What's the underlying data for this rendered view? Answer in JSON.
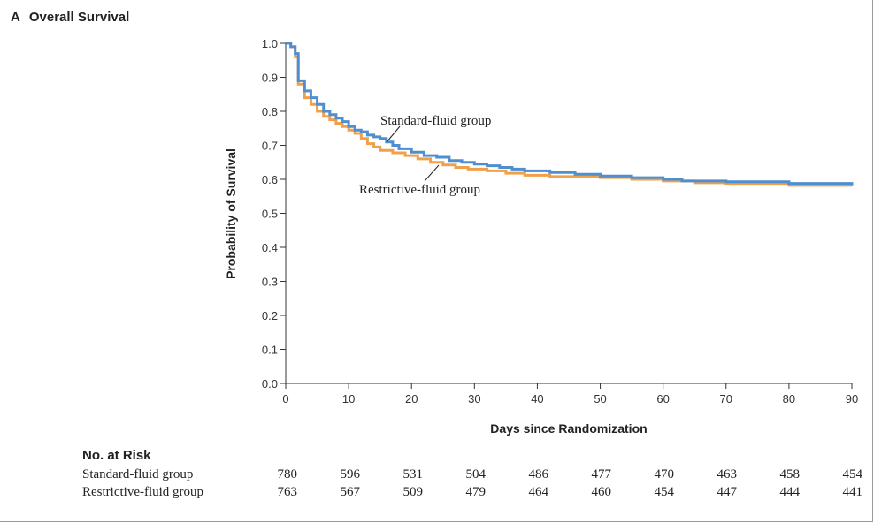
{
  "panel": {
    "letter": "A",
    "title": "Overall Survival"
  },
  "chart_data": {
    "type": "line",
    "step": true,
    "xlabel": "Days since Randomization",
    "ylabel": "Probability of Survival",
    "xlim": [
      0,
      90
    ],
    "ylim": [
      0,
      1.0
    ],
    "xticks": [
      "0",
      "10",
      "20",
      "30",
      "40",
      "50",
      "60",
      "70",
      "80",
      "90"
    ],
    "yticks": [
      "0.0",
      "0.1",
      "0.2",
      "0.3",
      "0.4",
      "0.5",
      "0.6",
      "0.7",
      "0.8",
      "0.9",
      "1.0"
    ],
    "grid": false,
    "series": [
      {
        "name": "Standard-fluid group",
        "color": "#4f8fcf",
        "points": [
          [
            0,
            1.0
          ],
          [
            0.8,
            0.99
          ],
          [
            1.5,
            0.97
          ],
          [
            2,
            0.89
          ],
          [
            3,
            0.86
          ],
          [
            4,
            0.84
          ],
          [
            5,
            0.82
          ],
          [
            6,
            0.8
          ],
          [
            7,
            0.79
          ],
          [
            8,
            0.78
          ],
          [
            9,
            0.77
          ],
          [
            10,
            0.755
          ],
          [
            11,
            0.745
          ],
          [
            12,
            0.74
          ],
          [
            13,
            0.73
          ],
          [
            14,
            0.725
          ],
          [
            15,
            0.72
          ],
          [
            16,
            0.71
          ],
          [
            17,
            0.7
          ],
          [
            18,
            0.69
          ],
          [
            20,
            0.68
          ],
          [
            22,
            0.67
          ],
          [
            24,
            0.665
          ],
          [
            26,
            0.655
          ],
          [
            28,
            0.65
          ],
          [
            30,
            0.645
          ],
          [
            32,
            0.64
          ],
          [
            34,
            0.635
          ],
          [
            36,
            0.63
          ],
          [
            38,
            0.625
          ],
          [
            42,
            0.62
          ],
          [
            46,
            0.615
          ],
          [
            50,
            0.61
          ],
          [
            55,
            0.605
          ],
          [
            60,
            0.6
          ],
          [
            63,
            0.595
          ],
          [
            70,
            0.593
          ],
          [
            80,
            0.588
          ],
          [
            90,
            0.584
          ]
        ]
      },
      {
        "name": "Restrictive-fluid group",
        "color": "#f0a04b",
        "points": [
          [
            0,
            1.0
          ],
          [
            0.8,
            0.99
          ],
          [
            1.5,
            0.96
          ],
          [
            2,
            0.88
          ],
          [
            3,
            0.84
          ],
          [
            4,
            0.82
          ],
          [
            5,
            0.8
          ],
          [
            6,
            0.785
          ],
          [
            7,
            0.775
          ],
          [
            8,
            0.765
          ],
          [
            9,
            0.755
          ],
          [
            10,
            0.745
          ],
          [
            11,
            0.735
          ],
          [
            12,
            0.72
          ],
          [
            13,
            0.705
          ],
          [
            14,
            0.695
          ],
          [
            15,
            0.685
          ],
          [
            17,
            0.678
          ],
          [
            19,
            0.67
          ],
          [
            21,
            0.66
          ],
          [
            23,
            0.65
          ],
          [
            25,
            0.642
          ],
          [
            27,
            0.635
          ],
          [
            29,
            0.63
          ],
          [
            32,
            0.625
          ],
          [
            35,
            0.618
          ],
          [
            38,
            0.612
          ],
          [
            42,
            0.608
          ],
          [
            50,
            0.605
          ],
          [
            55,
            0.6
          ],
          [
            60,
            0.595
          ],
          [
            65,
            0.59
          ],
          [
            70,
            0.588
          ],
          [
            80,
            0.582
          ],
          [
            90,
            0.58
          ]
        ]
      }
    ],
    "annotations": [
      "Standard-fluid group",
      "Restrictive-fluid group"
    ]
  },
  "risk_table": {
    "title": "No. at Risk",
    "rows": [
      {
        "label": "Standard-fluid group",
        "values": [
          "780",
          "596",
          "531",
          "504",
          "486",
          "477",
          "470",
          "463",
          "458",
          "454"
        ]
      },
      {
        "label": "Restrictive-fluid group",
        "values": [
          "763",
          "567",
          "509",
          "479",
          "464",
          "460",
          "454",
          "447",
          "444",
          "441"
        ]
      }
    ]
  }
}
